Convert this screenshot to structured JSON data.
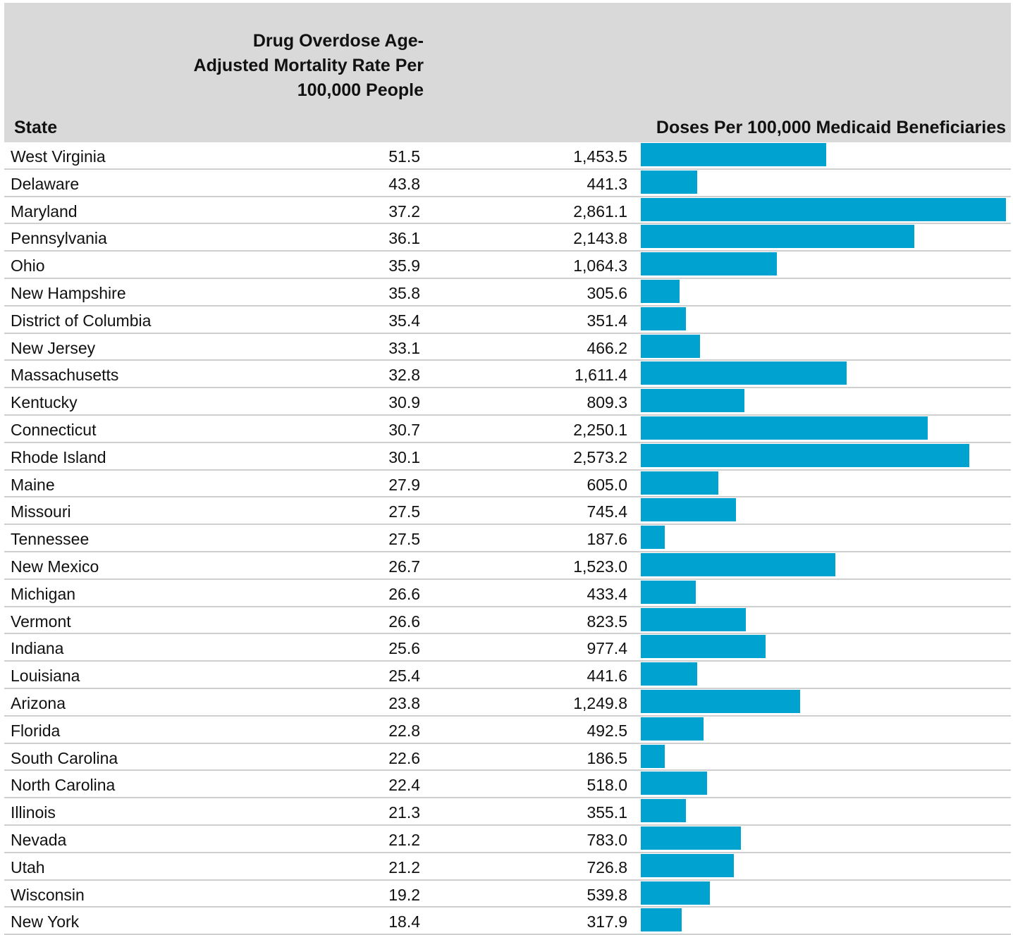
{
  "chart_data": {
    "type": "table",
    "columns": {
      "state": "State",
      "rate": "Drug Overdose Age-Adjusted Mortality Rate Per 100,000 People",
      "doses": "Doses Per 100,000 Medicaid Beneficiaries"
    },
    "bar_max": 2861.1,
    "bar_color": "#00a2d0",
    "rows": [
      {
        "state": "West Virginia",
        "rate": "51.5",
        "doses_label": "1,453.5",
        "doses": 1453.5
      },
      {
        "state": "Delaware",
        "rate": "43.8",
        "doses_label": "441.3",
        "doses": 441.3
      },
      {
        "state": "Maryland",
        "rate": "37.2",
        "doses_label": "2,861.1",
        "doses": 2861.1
      },
      {
        "state": "Pennsylvania",
        "rate": "36.1",
        "doses_label": "2,143.8",
        "doses": 2143.8
      },
      {
        "state": "Ohio",
        "rate": "35.9",
        "doses_label": "1,064.3",
        "doses": 1064.3
      },
      {
        "state": "New Hampshire",
        "rate": "35.8",
        "doses_label": "305.6",
        "doses": 305.6
      },
      {
        "state": "District of Columbia",
        "rate": "35.4",
        "doses_label": "351.4",
        "doses": 351.4
      },
      {
        "state": "New Jersey",
        "rate": "33.1",
        "doses_label": "466.2",
        "doses": 466.2
      },
      {
        "state": "Massachusetts",
        "rate": "32.8",
        "doses_label": "1,611.4",
        "doses": 1611.4
      },
      {
        "state": "Kentucky",
        "rate": "30.9",
        "doses_label": "809.3",
        "doses": 809.3
      },
      {
        "state": "Connecticut",
        "rate": "30.7",
        "doses_label": "2,250.1",
        "doses": 2250.1
      },
      {
        "state": "Rhode Island",
        "rate": "30.1",
        "doses_label": "2,573.2",
        "doses": 2573.2
      },
      {
        "state": "Maine",
        "rate": "27.9",
        "doses_label": "605.0",
        "doses": 605.0
      },
      {
        "state": "Missouri",
        "rate": "27.5",
        "doses_label": "745.4",
        "doses": 745.4
      },
      {
        "state": "Tennessee",
        "rate": "27.5",
        "doses_label": "187.6",
        "doses": 187.6
      },
      {
        "state": "New Mexico",
        "rate": "26.7",
        "doses_label": "1,523.0",
        "doses": 1523.0
      },
      {
        "state": "Michigan",
        "rate": "26.6",
        "doses_label": "433.4",
        "doses": 433.4
      },
      {
        "state": "Vermont",
        "rate": "26.6",
        "doses_label": "823.5",
        "doses": 823.5
      },
      {
        "state": "Indiana",
        "rate": "25.6",
        "doses_label": "977.4",
        "doses": 977.4
      },
      {
        "state": "Louisiana",
        "rate": "25.4",
        "doses_label": "441.6",
        "doses": 441.6
      },
      {
        "state": "Arizona",
        "rate": "23.8",
        "doses_label": "1,249.8",
        "doses": 1249.8
      },
      {
        "state": "Florida",
        "rate": "22.8",
        "doses_label": "492.5",
        "doses": 492.5
      },
      {
        "state": "South Carolina",
        "rate": "22.6",
        "doses_label": "186.5",
        "doses": 186.5
      },
      {
        "state": "North Carolina",
        "rate": "22.4",
        "doses_label": "518.0",
        "doses": 518.0
      },
      {
        "state": "Illinois",
        "rate": "21.3",
        "doses_label": "355.1",
        "doses": 355.1
      },
      {
        "state": "Nevada",
        "rate": "21.2",
        "doses_label": "783.0",
        "doses": 783.0
      },
      {
        "state": "Utah",
        "rate": "21.2",
        "doses_label": "726.8",
        "doses": 726.8
      },
      {
        "state": "Wisconsin",
        "rate": "19.2",
        "doses_label": "539.8",
        "doses": 539.8
      },
      {
        "state": "New York",
        "rate": "18.4",
        "doses_label": "317.9",
        "doses": 317.9
      }
    ]
  }
}
